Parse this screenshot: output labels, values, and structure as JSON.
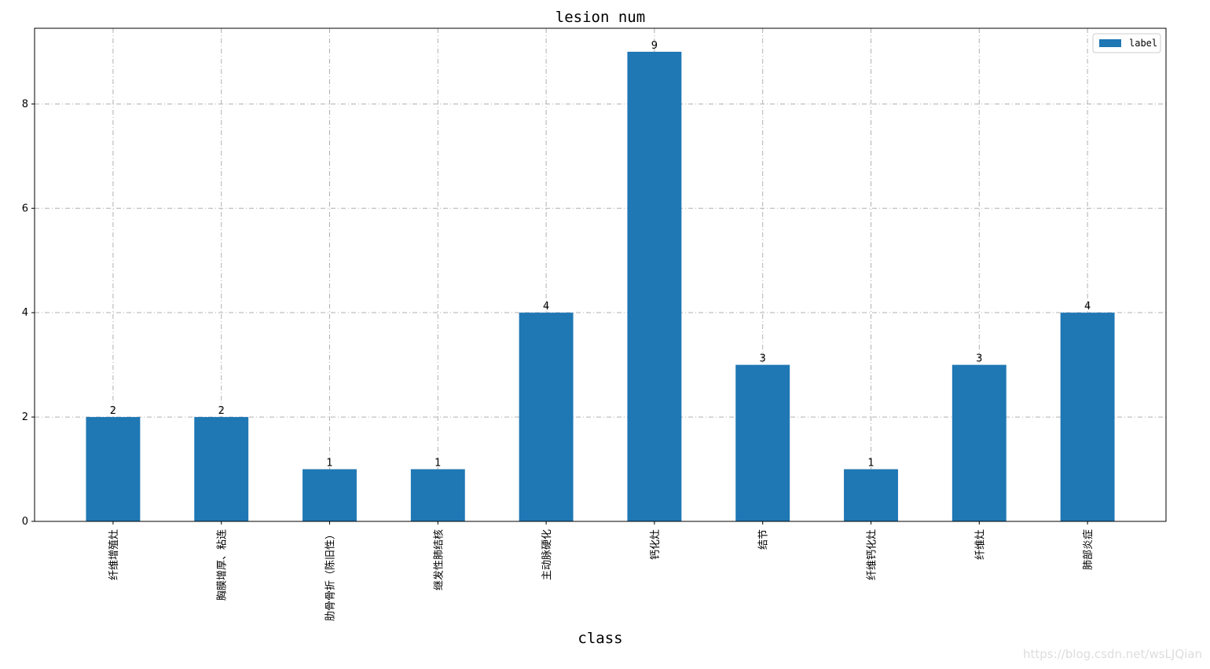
{
  "chart_data": {
    "type": "bar",
    "title": "lesion num",
    "x_label": "class",
    "categories": [
      "纤维增殖灶",
      "胸膜增厚、粘连",
      "肋骨骨折（陈旧性）",
      "继发性肺结核",
      "主动脉硬化",
      "钙化灶",
      "结节",
      "纤维钙化灶",
      "纤维灶",
      "肺部炎症"
    ],
    "series": [
      {
        "name": "label",
        "color": "#1f77b4",
        "values": [
          2,
          2,
          1,
          1,
          4,
          9,
          3,
          1,
          3,
          4
        ]
      }
    ],
    "ylim": [
      0,
      9.45
    ],
    "yticks": [
      0,
      2,
      4,
      6,
      8
    ],
    "grid": true,
    "legend": "upper right"
  },
  "watermark": "https://blog.csdn.net/wsLJQian"
}
